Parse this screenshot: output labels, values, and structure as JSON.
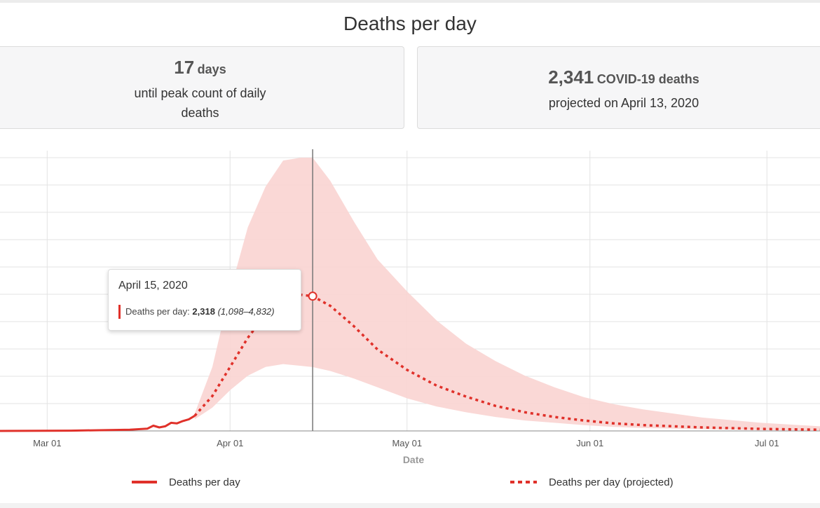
{
  "title": "Deaths per day",
  "cards": {
    "peak": {
      "value": "17",
      "unit": "days",
      "subtitle": "until peak count of daily deaths"
    },
    "projected": {
      "value": "2,341",
      "unit": "COVID-19 deaths",
      "subtitle": "projected on April 13, 2020"
    }
  },
  "tooltip": {
    "date": "April 15, 2020",
    "label": "Deaths per day:",
    "value": "2,318",
    "range": "(1,098–4,832)"
  },
  "colors": {
    "line": "#e0312a",
    "band": "#f9d4d2",
    "grid": "#e3e3e3",
    "cursor": "#777777"
  },
  "chart_data": {
    "type": "line",
    "xlabel": "Date",
    "ylabel": "",
    "x_ticks": [
      "Mar 01",
      "Apr 01",
      "May 01",
      "Jun 01",
      "Jul 01"
    ],
    "xlim": [
      "2020-02-22",
      "2020-07-10"
    ],
    "ylim": [
      0,
      4700
    ],
    "grid": true,
    "series": [
      {
        "name": "Deaths per day",
        "style": "solid",
        "x": [
          "2020-02-22",
          "2020-03-05",
          "2020-03-15",
          "2020-03-18",
          "2020-03-19",
          "2020-03-20",
          "2020-03-21",
          "2020-03-22",
          "2020-03-23",
          "2020-03-24",
          "2020-03-25",
          "2020-03-26"
        ],
        "y": [
          0,
          5,
          20,
          40,
          90,
          60,
          80,
          140,
          130,
          170,
          200,
          260
        ]
      },
      {
        "name": "Deaths per day (projected)",
        "style": "dotted",
        "x": [
          "2020-03-26",
          "2020-03-29",
          "2020-04-01",
          "2020-04-04",
          "2020-04-07",
          "2020-04-10",
          "2020-04-13",
          "2020-04-15",
          "2020-04-18",
          "2020-04-22",
          "2020-04-26",
          "2020-05-01",
          "2020-05-06",
          "2020-05-11",
          "2020-05-16",
          "2020-05-21",
          "2020-05-26",
          "2020-05-31",
          "2020-06-05",
          "2020-06-10",
          "2020-06-20",
          "2020-06-30",
          "2020-07-10"
        ],
        "y": [
          260,
          600,
          1100,
          1600,
          2000,
          2250,
          2341,
          2318,
          2150,
          1800,
          1400,
          1050,
          780,
          590,
          430,
          320,
          240,
          180,
          130,
          100,
          60,
          35,
          20
        ]
      }
    ],
    "band": {
      "name": "uncertainty interval",
      "x": [
        "2020-03-26",
        "2020-03-29",
        "2020-04-01",
        "2020-04-04",
        "2020-04-07",
        "2020-04-10",
        "2020-04-13",
        "2020-04-15",
        "2020-04-18",
        "2020-04-22",
        "2020-04-26",
        "2020-05-01",
        "2020-05-06",
        "2020-05-11",
        "2020-05-16",
        "2020-05-21",
        "2020-05-26",
        "2020-05-31",
        "2020-06-05",
        "2020-06-10",
        "2020-06-20",
        "2020-06-30",
        "2020-07-10"
      ],
      "upper": [
        300,
        1100,
        2400,
        3500,
        4200,
        4650,
        4700,
        4700,
        4300,
        3600,
        2950,
        2400,
        1900,
        1500,
        1200,
        950,
        750,
        580,
        460,
        370,
        230,
        140,
        80
      ],
      "lower": [
        200,
        400,
        700,
        950,
        1100,
        1150,
        1120,
        1098,
        1030,
        900,
        750,
        560,
        420,
        320,
        240,
        180,
        140,
        100,
        70,
        50,
        30,
        15,
        8
      ]
    },
    "cursor": {
      "x": "2020-04-15",
      "y": 2318
    },
    "legend": {
      "position": "bottom",
      "entries": [
        {
          "label": "Deaths per day",
          "style": "solid"
        },
        {
          "label": "Deaths per day (projected)",
          "style": "dotted"
        }
      ]
    }
  }
}
